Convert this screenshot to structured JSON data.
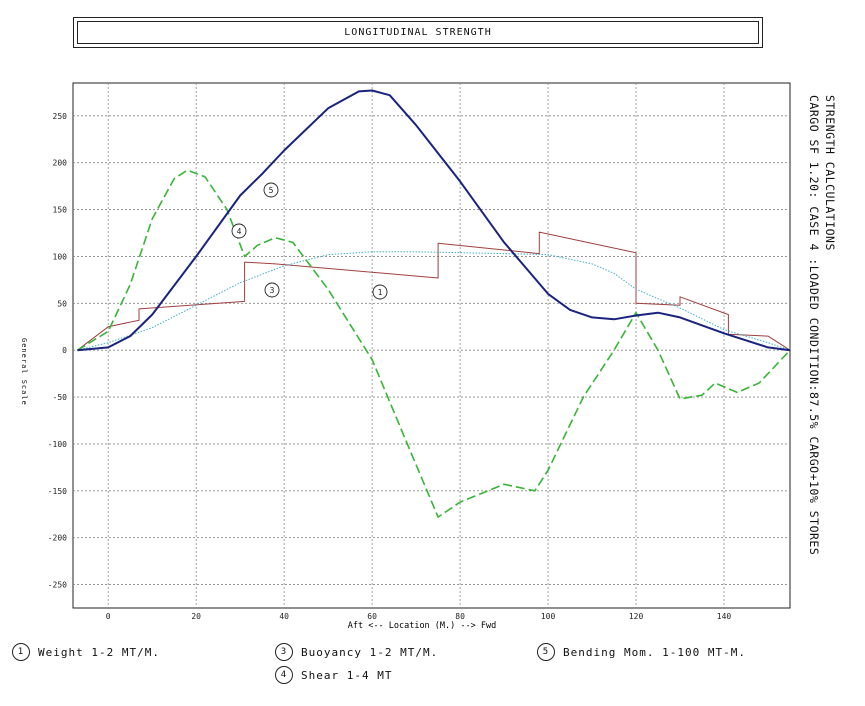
{
  "title": "LONGITUDINAL STRENGTH",
  "side_text": {
    "line1": "STRENGTH CALCULATIONS",
    "line2": "CARGO SF 1.20: CASE 4 :LOADED CONDITION:87.5% CARGO+10% STORES"
  },
  "legend": [
    {
      "num": "1",
      "label": "Weight 1-2 MT/M."
    },
    {
      "num": "3",
      "label": "Buoyancy 1-2 MT/M."
    },
    {
      "num": "5",
      "label": "Bending Mom. 1-100 MT-M."
    },
    {
      "num": "4",
      "label": "Shear 1-4 MT"
    }
  ],
  "colors": {
    "weight": "#a04040",
    "buoyancy": "#3fb0c8",
    "shear": "#36b536",
    "bending": "#1a237e",
    "grid": "#888888"
  },
  "chart_data": {
    "type": "line",
    "xlabel": "Aft <-- Location (M.) --> Fwd",
    "ylabel": "General Scale",
    "xlim": [
      -8,
      155
    ],
    "ylim": [
      -275,
      285
    ],
    "xticks": [
      0,
      20,
      40,
      60,
      80,
      100,
      120,
      140
    ],
    "yticks": [
      250,
      200,
      150,
      100,
      50,
      0,
      -50,
      -100,
      -150,
      -200,
      -250
    ],
    "grid": true,
    "series": [
      {
        "id": "weight",
        "name": "Weight 1-2 MT/M.",
        "tag": "1",
        "step": true,
        "x": [
          -7,
          0,
          7,
          7,
          31,
          31,
          38,
          75,
          75,
          98,
          98,
          120,
          120,
          130,
          130,
          141,
          141,
          150,
          155
        ],
        "y": [
          0,
          25,
          32,
          44,
          52,
          94,
          92,
          77,
          114,
          103,
          126,
          104,
          50,
          48,
          57,
          38,
          17,
          15,
          0
        ]
      },
      {
        "id": "buoyancy",
        "name": "Buoyancy 1-2 MT/M.",
        "tag": "3",
        "x": [
          -7,
          0,
          10,
          20,
          30,
          40,
          50,
          60,
          70,
          80,
          90,
          100,
          110,
          115,
          120,
          130,
          140,
          150,
          155
        ],
        "y": [
          0,
          8,
          24,
          48,
          72,
          90,
          102,
          105,
          105,
          104,
          103,
          102,
          92,
          82,
          65,
          45,
          22,
          8,
          0
        ]
      },
      {
        "id": "shear",
        "name": "Shear 1-4 MT",
        "tag": "4",
        "dashed": true,
        "x": [
          -7,
          0,
          5,
          10,
          15,
          18,
          22,
          27,
          31,
          34,
          38,
          42,
          50,
          60,
          68,
          75,
          80,
          90,
          97,
          100,
          108,
          115,
          120,
          125,
          130,
          135,
          138,
          143,
          148,
          155
        ],
        "y": [
          0,
          20,
          70,
          140,
          183,
          192,
          185,
          150,
          100,
          112,
          120,
          115,
          65,
          -10,
          -100,
          -178,
          -162,
          -143,
          -150,
          -128,
          -50,
          0,
          40,
          0,
          -52,
          -48,
          -35,
          -45,
          -35,
          0
        ]
      },
      {
        "id": "bending",
        "name": "Bending Mom. 1-100 MT-M.",
        "tag": "5",
        "x": [
          -7,
          0,
          5,
          10,
          20,
          30,
          35,
          40,
          50,
          57,
          60,
          64,
          70,
          80,
          90,
          100,
          105,
          110,
          115,
          120,
          125,
          130,
          140,
          150,
          155
        ],
        "y": [
          0,
          3,
          15,
          38,
          100,
          165,
          188,
          213,
          258,
          276,
          277,
          272,
          240,
          180,
          115,
          60,
          43,
          35,
          33,
          37,
          40,
          35,
          18,
          3,
          0
        ]
      }
    ],
    "annotations": [
      {
        "tag": "5",
        "x": 37,
        "y": 172
      },
      {
        "tag": "4",
        "x": 30,
        "y": 128
      },
      {
        "tag": "3",
        "x": 37,
        "y": 65
      },
      {
        "tag": "1",
        "x": 62,
        "y": 62
      }
    ]
  }
}
